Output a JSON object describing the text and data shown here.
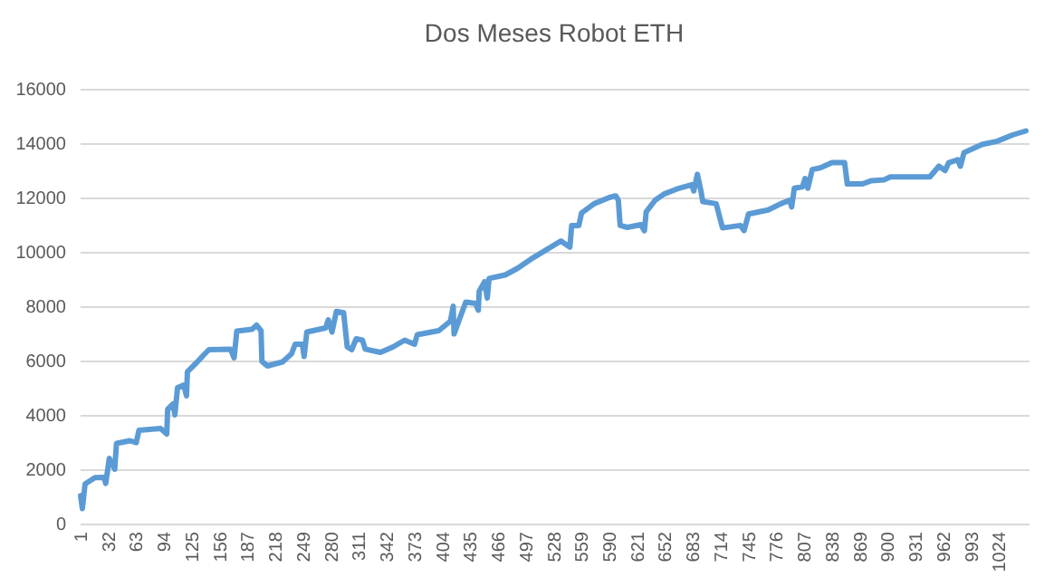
{
  "chart_data": {
    "type": "line",
    "title": "Dos Meses Robot ETH",
    "x": [
      1,
      3,
      6,
      17,
      27,
      29,
      33,
      39,
      41,
      56,
      63,
      66,
      90,
      97,
      98,
      104,
      106,
      109,
      116,
      119,
      120,
      131,
      138,
      144,
      168,
      172,
      175,
      192,
      197,
      202,
      203,
      209,
      226,
      236,
      240,
      248,
      250,
      253,
      274,
      277,
      281,
      286,
      294,
      298,
      303,
      308,
      315,
      318,
      335,
      349,
      362,
      373,
      376,
      400,
      413,
      416,
      417,
      430,
      441,
      444,
      445,
      451,
      454,
      456,
      474,
      488,
      505,
      536,
      546,
      548,
      556,
      559,
      573,
      590,
      597,
      600,
      602,
      610,
      625,
      629,
      631,
      641,
      651,
      665,
      682,
      684,
      688,
      692,
      694,
      709,
      716,
      736,
      740,
      745,
      767,
      781,
      791,
      793,
      796,
      805,
      808,
      811,
      816,
      825,
      838,
      852,
      855,
      872,
      882,
      896,
      903,
      947,
      957,
      964,
      968,
      978,
      981,
      985,
      1005,
      1022,
      1039,
      1054
    ],
    "series": [
      {
        "color": "#5b9bd5",
        "values": [
          1030,
          550,
          1460,
          1690,
          1700,
          1480,
          2400,
          2000,
          2950,
          3050,
          2980,
          3430,
          3500,
          3300,
          4210,
          4400,
          4000,
          5000,
          5100,
          4700,
          5590,
          5950,
          6200,
          6400,
          6420,
          6100,
          7080,
          7150,
          7300,
          7100,
          5970,
          5800,
          5950,
          6250,
          6600,
          6600,
          6150,
          7050,
          7200,
          7500,
          7050,
          7810,
          7760,
          6500,
          6400,
          6800,
          6750,
          6420,
          6300,
          6500,
          6750,
          6600,
          6950,
          7100,
          7450,
          8000,
          6980,
          8150,
          8100,
          7850,
          8550,
          8900,
          8300,
          9020,
          9150,
          9400,
          9780,
          10400,
          10170,
          10970,
          10970,
          11430,
          11770,
          12000,
          12060,
          11900,
          10970,
          10900,
          11000,
          10780,
          11470,
          11900,
          12130,
          12310,
          12470,
          12240,
          12850,
          12240,
          11850,
          11770,
          10880,
          10970,
          10780,
          11390,
          11540,
          11770,
          11900,
          11650,
          12340,
          12390,
          12700,
          12340,
          13030,
          13090,
          13280,
          13280,
          12500,
          12500,
          12620,
          12650,
          12760,
          12760,
          13150,
          12990,
          13280,
          13390,
          13150,
          13650,
          13950,
          14070,
          14300,
          14450
        ]
      }
    ],
    "xlim": [
      0,
      1057
    ],
    "xticks": [
      1,
      32,
      63,
      94,
      125,
      156,
      187,
      218,
      249,
      280,
      311,
      342,
      373,
      404,
      435,
      466,
      497,
      528,
      559,
      590,
      621,
      652,
      683,
      714,
      745,
      776,
      807,
      838,
      869,
      900,
      931,
      962,
      993,
      1024
    ],
    "ylim": [
      0,
      16000
    ],
    "yticks": [
      0,
      2000,
      4000,
      6000,
      8000,
      10000,
      12000,
      14000,
      16000
    ],
    "grid": "y",
    "marker": "none",
    "line_style": "solid"
  }
}
